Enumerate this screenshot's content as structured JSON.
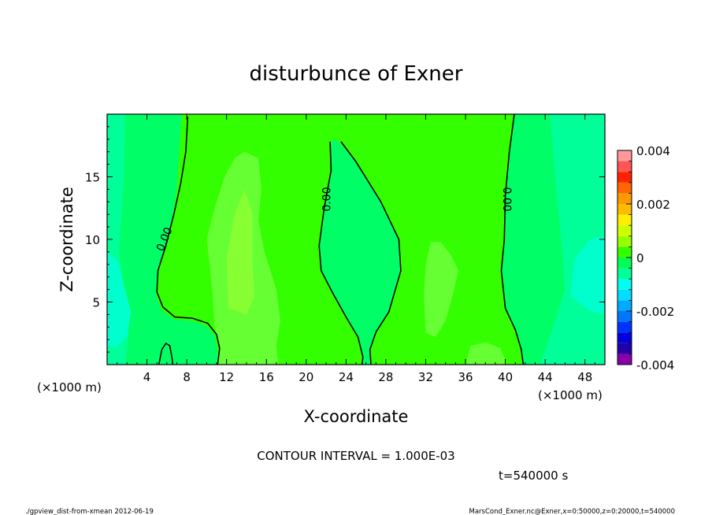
{
  "chart_data": {
    "type": "heatmap",
    "title": "disturbunce of Exner",
    "xlabel": "X-coordinate",
    "ylabel": "Z-coordinate",
    "x_unit": "(×1000 m)",
    "y_unit": "(×1000 m)",
    "xlim": [
      0,
      50
    ],
    "ylim": [
      0,
      20
    ],
    "x_ticks": [
      4,
      8,
      12,
      16,
      20,
      24,
      28,
      32,
      36,
      40,
      44,
      48
    ],
    "y_ticks": [
      5,
      10,
      15
    ],
    "contour_interval_text": "CONTOUR INTERVAL = 1.000E-03",
    "time_text": "t=540000 s",
    "contour_labels": [
      "0.00",
      "0.00",
      "0.00"
    ],
    "zero_contours": [
      {
        "label": "0.00",
        "points": [
          [
            8.1,
            19.8
          ],
          [
            7.9,
            17
          ],
          [
            7.4,
            14.5
          ],
          [
            6.7,
            12
          ],
          [
            5.9,
            9.5
          ],
          [
            5.1,
            7.5
          ],
          [
            5.0,
            5.8
          ],
          [
            5.6,
            4.6
          ],
          [
            6.8,
            3.8
          ],
          [
            8.6,
            3.7
          ],
          [
            10.1,
            3.3
          ],
          [
            11.0,
            2.4
          ],
          [
            11.3,
            1.3
          ],
          [
            11.1,
            0.0
          ]
        ]
      },
      {
        "label": "0.00",
        "points": [
          [
            22.4,
            17.8
          ],
          [
            22.5,
            15.5
          ],
          [
            21.8,
            12.5
          ],
          [
            21.3,
            9.5
          ],
          [
            21.5,
            7.5
          ],
          [
            22.6,
            5.8
          ],
          [
            24.0,
            3.8
          ],
          [
            25.2,
            2.2
          ],
          [
            25.7,
            0.6
          ],
          [
            25.6,
            0.0
          ]
        ]
      },
      {
        "label": "0.00",
        "points": [
          [
            23.5,
            17.8
          ],
          [
            25.0,
            16.2
          ],
          [
            27.5,
            13.0
          ],
          [
            29.3,
            10.0
          ],
          [
            29.5,
            7.5
          ],
          [
            28.3,
            4.2
          ],
          [
            27.0,
            2.6
          ],
          [
            26.4,
            1.2
          ],
          [
            26.5,
            0.0
          ]
        ]
      },
      {
        "label": "0.00",
        "points": [
          [
            40.9,
            20.0
          ],
          [
            40.4,
            17.0
          ],
          [
            40.0,
            13.5
          ],
          [
            39.9,
            10.0
          ],
          [
            39.6,
            7.5
          ],
          [
            40.0,
            4.5
          ],
          [
            41.0,
            2.8
          ],
          [
            41.6,
            1.2
          ],
          [
            41.8,
            0.0
          ]
        ]
      },
      {
        "label": "",
        "points": [
          [
            5.2,
            0.0
          ],
          [
            5.5,
            1.2
          ],
          [
            5.9,
            1.7
          ],
          [
            6.3,
            1.5
          ],
          [
            6.5,
            0.6
          ],
          [
            6.6,
            0.0
          ]
        ]
      }
    ],
    "colorbar": {
      "tick_labels": [
        "0.004",
        "0.002",
        "0",
        "-0.002",
        "-0.004"
      ],
      "tick_values": [
        0.004,
        0.002,
        0,
        -0.002,
        -0.004
      ],
      "levels": [
        -0.004,
        -0.0036,
        -0.0032,
        -0.0028,
        -0.0024,
        -0.002,
        -0.0016,
        -0.0012,
        -0.0008,
        -0.0004,
        0,
        0.0004,
        0.0008,
        0.0012,
        0.0016,
        0.002,
        0.0024,
        0.0028,
        0.0032,
        0.0036,
        0.004
      ],
      "colors": [
        "#8800aa",
        "#2200aa",
        "#0000dd",
        "#0033ff",
        "#0077ff",
        "#00aaff",
        "#00ddff",
        "#00ffee",
        "#00ff99",
        "#00ff55",
        "#33ff00",
        "#99ff00",
        "#ccff00",
        "#ffee00",
        "#ffbb00",
        "#ff9900",
        "#ff6600",
        "#ff2200",
        "#ff5555",
        "#ff9999"
      ]
    },
    "field_colors": {
      "neg_deep": "#00ffcc",
      "neg_mid": "#00ff99",
      "neg_light": "#00ff66",
      "pos_low": "#33ff00",
      "pos_mid": "#66ff33",
      "pos_high": "#88ff33"
    }
  },
  "footer": {
    "left": "./gpview_dist-from-xmean  2012-06-19",
    "right": "MarsCond_Exner.nc@Exner,x=0:50000,z=0:20000,t=540000"
  }
}
